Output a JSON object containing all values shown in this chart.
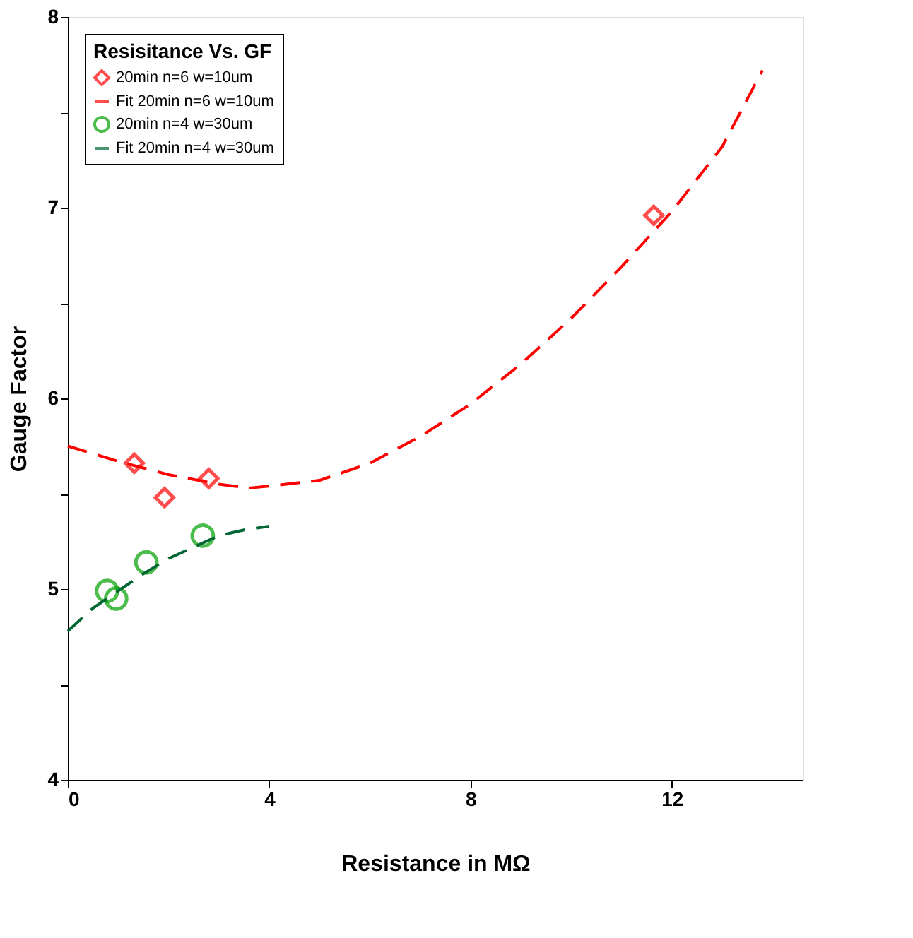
{
  "chart_data": {
    "type": "scatter",
    "xlabel": "Resistance in MΩ",
    "ylabel": "Gauge Factor",
    "legend_title": "Resisitance Vs. GF",
    "legend": "top left",
    "grid": false,
    "xlim": [
      0,
      14.6
    ],
    "xticks": [
      0,
      4,
      8,
      12
    ],
    "ylim": [
      4,
      8
    ],
    "yticks": [
      4,
      {
        "value": 4.5,
        "label": null
      },
      5,
      {
        "value": 5.5,
        "label": null
      },
      6,
      {
        "value": 6.5,
        "label": null
      },
      7,
      {
        "value": 7.5,
        "label": null
      },
      8
    ],
    "series": [
      {
        "name": "20min n=6 w=10um",
        "marker": "diamond",
        "color": "#ff0000",
        "x": [
          1.32,
          1.92,
          2.8,
          11.64
        ],
        "values": [
          5.66,
          5.48,
          5.58,
          6.96
        ]
      },
      {
        "name": "Fit 20min n=6 w=10um",
        "type": "line",
        "line_style": "dashed",
        "color": "#ff0000",
        "x": [
          0,
          1,
          2,
          3,
          3.6,
          4,
          5,
          6,
          7,
          8,
          9,
          10,
          11,
          12,
          13,
          13.8
        ],
        "values": [
          5.75,
          5.67,
          5.6,
          5.55,
          5.53,
          5.54,
          5.57,
          5.66,
          5.8,
          5.97,
          6.18,
          6.42,
          6.69,
          6.98,
          7.32,
          7.72
        ]
      },
      {
        "name": "20min n=4 w=30um",
        "marker": "circle",
        "color": "#00a000",
        "x": [
          0.78,
          0.96,
          1.56,
          2.68
        ],
        "values": [
          4.99,
          4.95,
          5.14,
          5.28
        ]
      },
      {
        "name": "Fit 20min n=4 w=30um",
        "type": "line",
        "line_style": "dashed",
        "color": "#006633",
        "x": [
          0,
          0.5,
          1,
          1.5,
          2,
          2.5,
          3,
          3.5,
          4
        ],
        "values": [
          4.78,
          4.9,
          4.99,
          5.08,
          5.16,
          5.22,
          5.28,
          5.31,
          5.33
        ]
      }
    ]
  }
}
